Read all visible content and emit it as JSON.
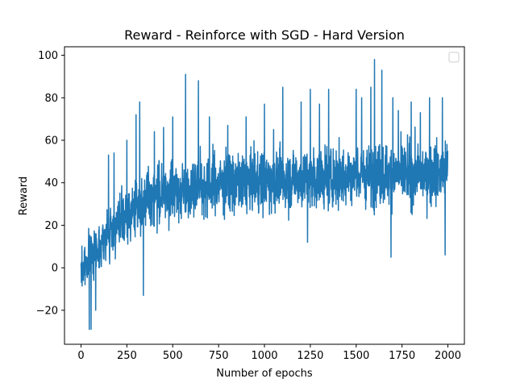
{
  "chart_data": {
    "type": "line",
    "title": "Reward - Reinforce with SGD - Hard Version",
    "xlabel": "Number of epochs",
    "ylabel": "Reward",
    "xlim": [
      -90,
      2090
    ],
    "ylim": [
      -36,
      104
    ],
    "xticks": [
      0,
      250,
      500,
      750,
      1000,
      1250,
      1500,
      1750,
      2000
    ],
    "yticks": [
      -20,
      0,
      20,
      40,
      60,
      80,
      100
    ],
    "grid": false,
    "legend": "top-right (empty)",
    "line_color": "#1f77b4",
    "series": [
      {
        "n_points": 2000,
        "baseline": [
          [
            0,
            -2
          ],
          [
            25,
            2
          ],
          [
            50,
            5
          ],
          [
            75,
            8
          ],
          [
            100,
            10
          ],
          [
            150,
            16
          ],
          [
            200,
            20
          ],
          [
            250,
            24
          ],
          [
            300,
            28
          ],
          [
            350,
            32
          ],
          [
            400,
            34
          ],
          [
            500,
            36
          ],
          [
            600,
            38
          ],
          [
            700,
            39
          ],
          [
            800,
            40
          ],
          [
            1000,
            41
          ],
          [
            1200,
            42
          ],
          [
            1400,
            43
          ],
          [
            1600,
            44
          ],
          [
            1800,
            44
          ],
          [
            2000,
            45
          ]
        ],
        "spread": [
          [
            0,
            12
          ],
          [
            200,
            16
          ],
          [
            500,
            18
          ],
          [
            1000,
            18
          ],
          [
            2000,
            18
          ]
        ],
        "peaks": [
          [
            45,
            -29
          ],
          [
            55,
            -29
          ],
          [
            80,
            -20
          ],
          [
            150,
            53
          ],
          [
            180,
            54
          ],
          [
            250,
            60
          ],
          [
            300,
            72
          ],
          [
            320,
            78
          ],
          [
            340,
            -13
          ],
          [
            400,
            64
          ],
          [
            450,
            66
          ],
          [
            500,
            71
          ],
          [
            570,
            91
          ],
          [
            640,
            88
          ],
          [
            700,
            71
          ],
          [
            800,
            67
          ],
          [
            900,
            71
          ],
          [
            1000,
            77
          ],
          [
            1050,
            65
          ],
          [
            1100,
            85
          ],
          [
            1200,
            78
          ],
          [
            1235,
            12
          ],
          [
            1250,
            84
          ],
          [
            1300,
            77
          ],
          [
            1350,
            84
          ],
          [
            1500,
            84
          ],
          [
            1530,
            80
          ],
          [
            1580,
            85
          ],
          [
            1600,
            98
          ],
          [
            1640,
            93
          ],
          [
            1690,
            5
          ],
          [
            1700,
            80
          ],
          [
            1730,
            74
          ],
          [
            1800,
            78
          ],
          [
            1850,
            73
          ],
          [
            1900,
            80
          ],
          [
            1970,
            80
          ],
          [
            1985,
            6
          ],
          [
            2000,
            55
          ]
        ]
      }
    ]
  }
}
